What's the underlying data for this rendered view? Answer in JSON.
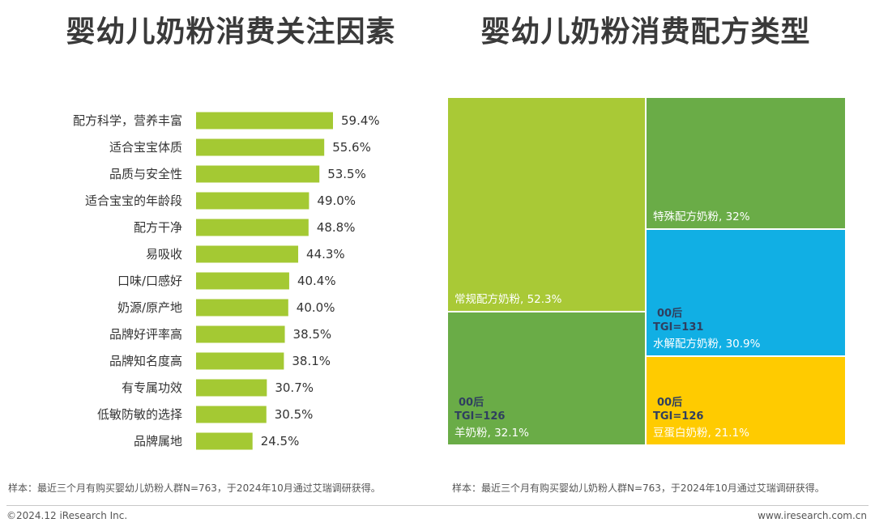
{
  "left_title": "婴幼儿奶粉消费关注因素",
  "right_title": "婴幼儿奶粉消费配方类型",
  "note_left": "样本：最近三个月有购买婴幼儿奶粉人群N=763，于2024年10月通过艾瑞调研获得。",
  "note_right": "样本：最近三个月有购买婴幼儿奶粉人群N=763，于2024年10月通过艾瑞调研获得。",
  "footer": {
    "copyright": "©2024.12 iResearch Inc.",
    "website": "www.iresearch.com.cn"
  },
  "colors": {
    "bar": "#a4c933",
    "tile_green_light": "#a9c936",
    "tile_green": "#6aac47",
    "tile_blue": "#11afe4",
    "tile_yellow": "#ffcb00",
    "tag_text": "#2f3f5f"
  },
  "chart_data": [
    {
      "type": "bar",
      "orientation": "horizontal",
      "categories": [
        "配方科学，营养丰富",
        "适合宝宝体质",
        "品质与安全性",
        "适合宝宝的年龄段",
        "配方干净",
        "易吸收",
        "口味/口感好",
        "奶源/原产地",
        "品牌好评率高",
        "品牌知名度高",
        "有专属功效",
        "低敏防敏的选择",
        "品牌属地"
      ],
      "values": [
        59.4,
        55.6,
        53.5,
        49.0,
        48.8,
        44.3,
        40.4,
        40.0,
        38.5,
        38.1,
        30.7,
        30.5,
        24.5
      ],
      "value_labels": [
        "59.4%",
        "55.6%",
        "53.5%",
        "49.0%",
        "48.8%",
        "44.3%",
        "40.4%",
        "40.0%",
        "38.5%",
        "38.1%",
        "30.7%",
        "30.5%",
        "24.5%"
      ],
      "unit": "%",
      "grid": false,
      "legend": "none"
    },
    {
      "type": "treemap",
      "items": [
        {
          "name": "常规配方奶粉",
          "value": 52.3,
          "label": "常规配方奶粉, 52.3%",
          "color": "#a9c936",
          "tag": []
        },
        {
          "name": "羊奶粉",
          "value": 32.1,
          "label": "羊奶粉, 32.1%",
          "color": "#6aac47",
          "tag": [
            "00后",
            "TGI=126"
          ]
        },
        {
          "name": "特殊配方奶粉",
          "value": 32,
          "label": "特殊配方奶粉, 32%",
          "color": "#6aac47",
          "tag": []
        },
        {
          "name": "水解配方奶粉",
          "value": 30.9,
          "label": "水解配方奶粉, 30.9%",
          "color": "#11afe4",
          "tag": [
            "00后",
            "TGI=131"
          ]
        },
        {
          "name": "豆蛋白奶粉",
          "value": 21.1,
          "label": "豆蛋白奶粉, 21.1%",
          "color": "#ffcb00",
          "tag": [
            "00后",
            "TGI=126"
          ]
        }
      ]
    }
  ]
}
